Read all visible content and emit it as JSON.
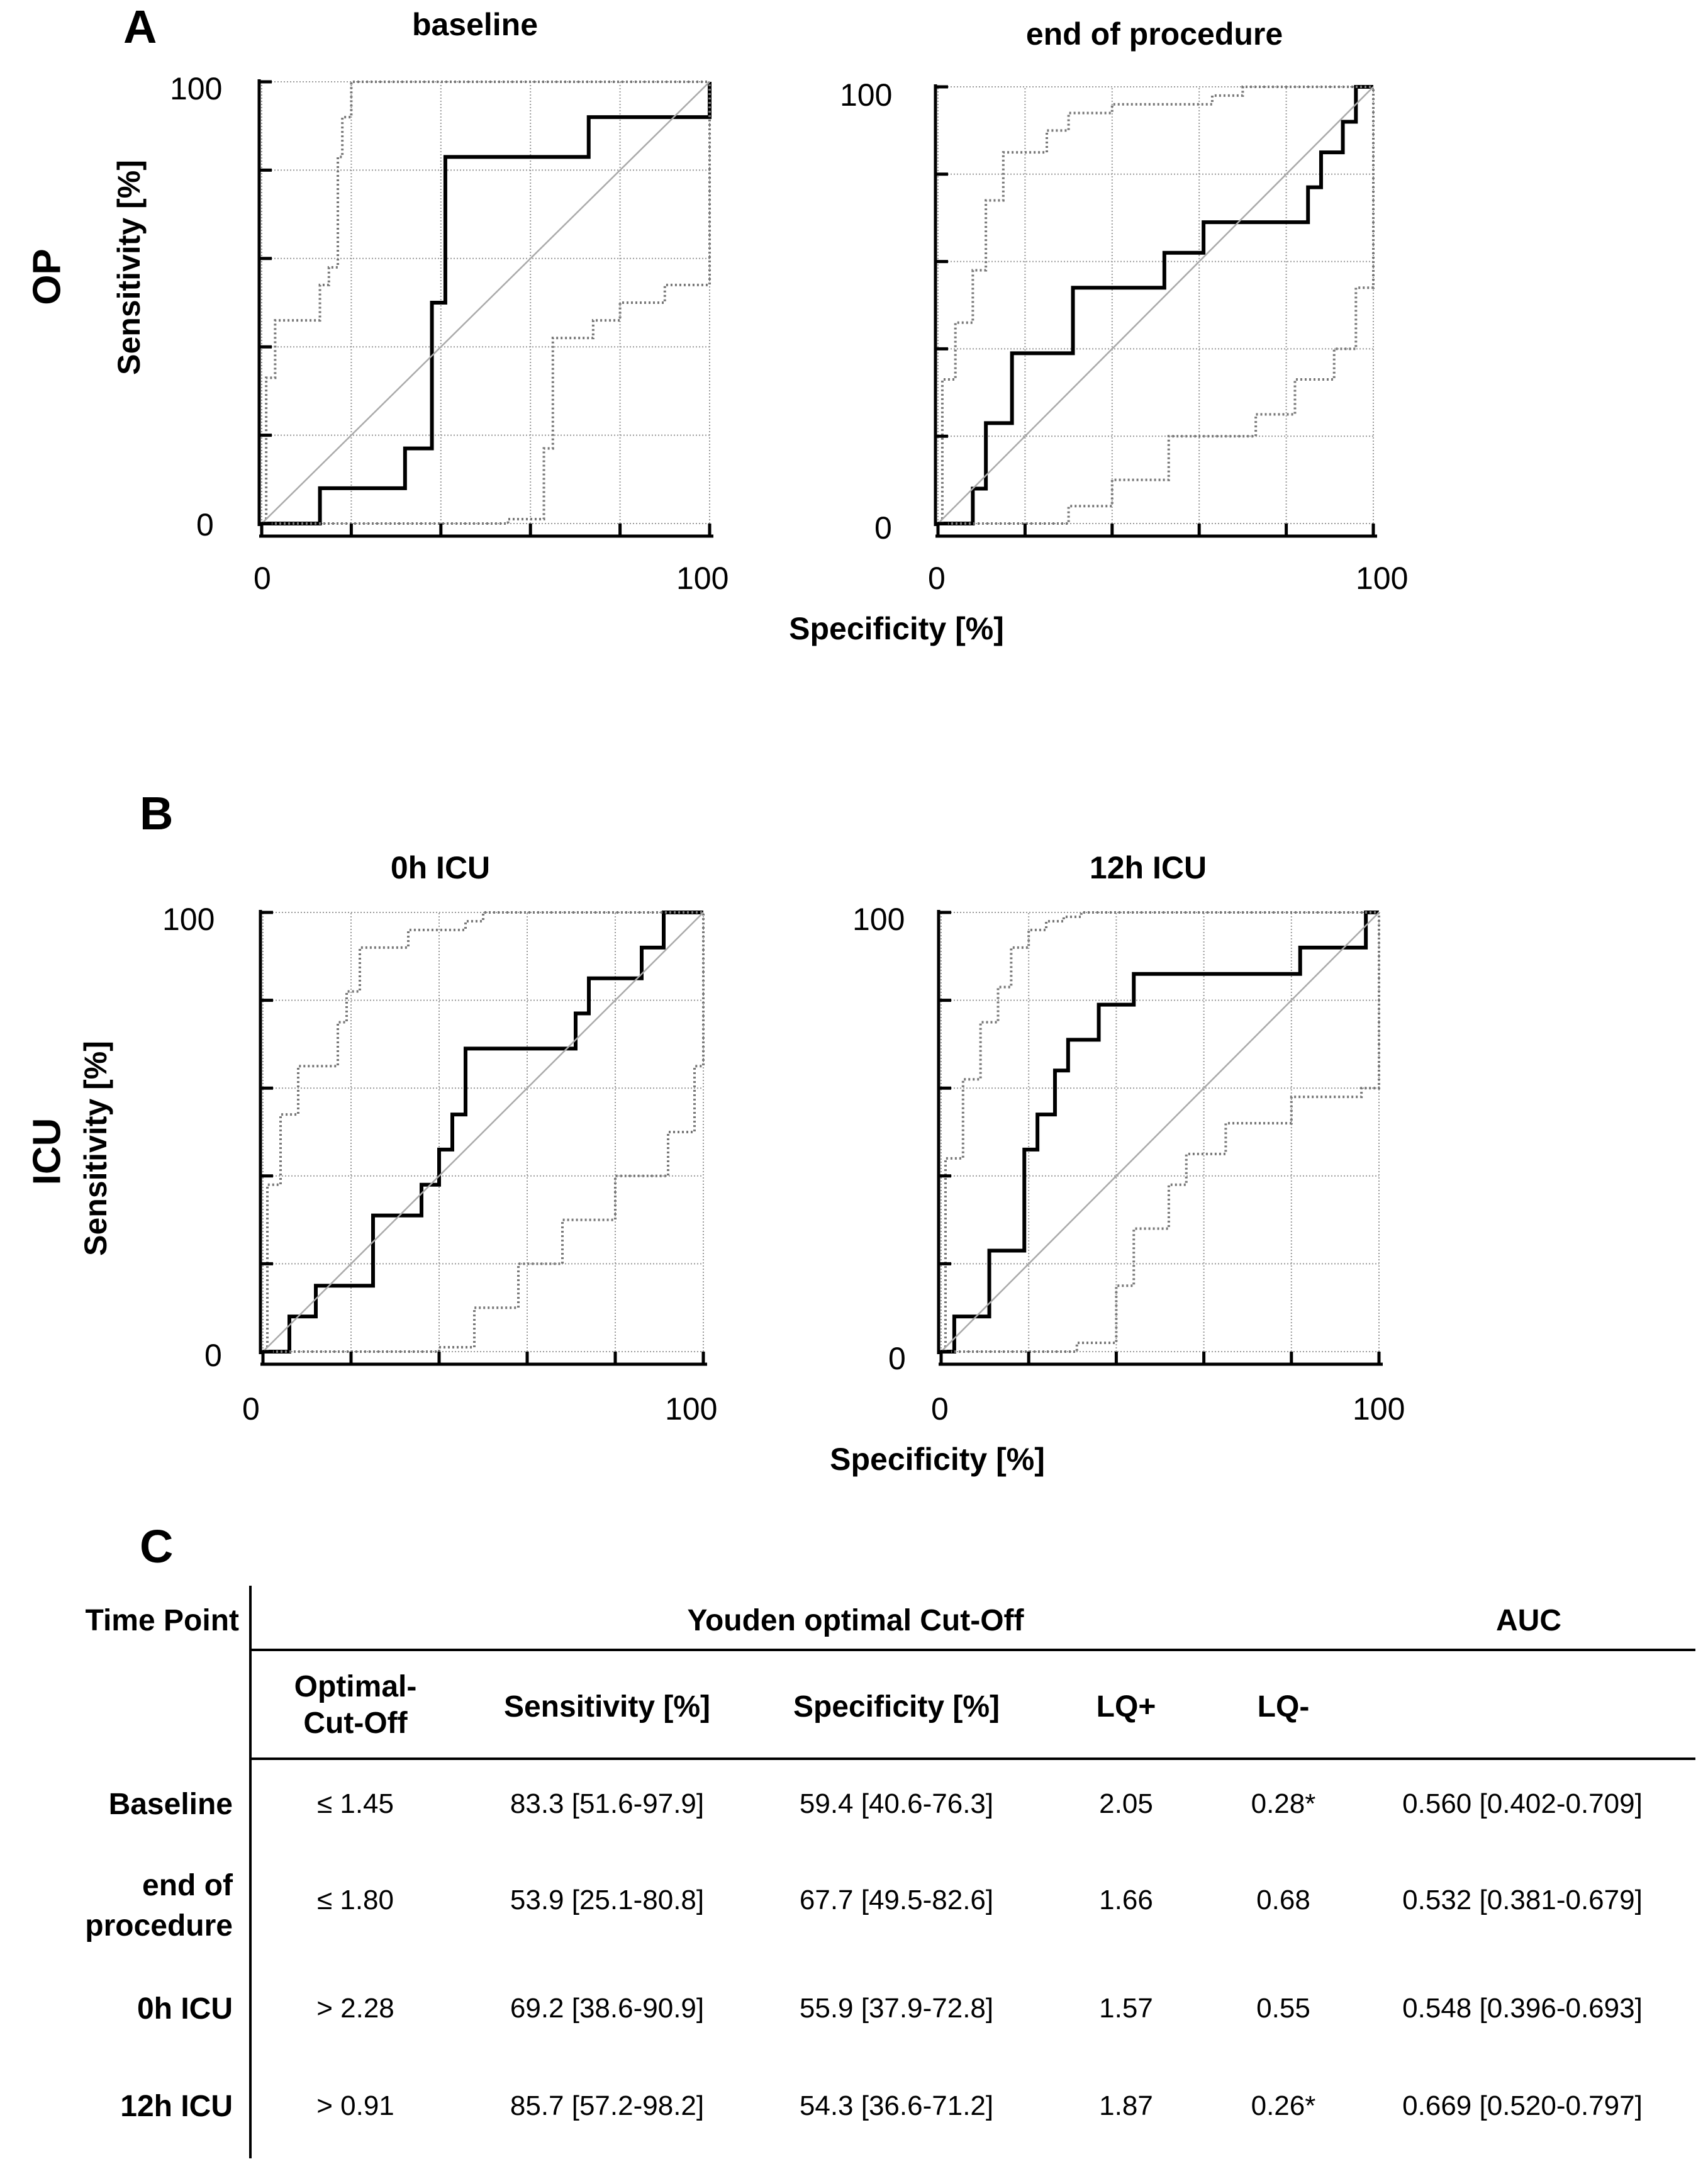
{
  "panel_labels": {
    "a": "A",
    "b": "B",
    "c": "C"
  },
  "row_labels": {
    "op": "OP",
    "icu": "ICU"
  },
  "axis": {
    "ylabel": "Sensitivity [%]",
    "xlabel": "Specificity [%]",
    "tick_low": "0",
    "tick_high": "100"
  },
  "chart_data": [
    {
      "type": "line",
      "title": "baseline",
      "xlabel": "Specificity [%]",
      "ylabel": "Sensitivity [%]",
      "xlim": [
        0,
        100
      ],
      "ylim": [
        0,
        100
      ],
      "grid": true,
      "series": [
        {
          "style": "roc",
          "x": [
            0,
            13,
            13,
            32,
            32,
            38,
            38,
            41,
            41,
            73,
            73,
            100,
            100
          ],
          "y": [
            0,
            0,
            8,
            8,
            17,
            17,
            50,
            50,
            83,
            83,
            92,
            92,
            100
          ]
        },
        {
          "style": "ci_upper",
          "x": [
            0,
            1,
            1,
            3,
            3,
            13,
            13,
            15,
            15,
            17,
            17,
            18,
            18,
            20,
            20,
            100
          ],
          "y": [
            0,
            0,
            33,
            33,
            46,
            46,
            54,
            54,
            58,
            58,
            83,
            83,
            92,
            92,
            100,
            100
          ]
        },
        {
          "style": "ci_lower",
          "x": [
            0,
            55,
            55,
            63,
            63,
            65,
            65,
            74,
            74,
            80,
            80,
            90,
            90,
            100,
            100
          ],
          "y": [
            0,
            0,
            1,
            1,
            17,
            17,
            42,
            42,
            46,
            46,
            50,
            50,
            54,
            54,
            100
          ]
        },
        {
          "style": "diagonal",
          "x": [
            0,
            100
          ],
          "y": [
            0,
            100
          ]
        }
      ]
    },
    {
      "type": "line",
      "title": "end of procedure",
      "xlabel": "Specificity [%]",
      "ylabel": "Sensitivity [%]",
      "xlim": [
        0,
        100
      ],
      "ylim": [
        0,
        100
      ],
      "grid": true,
      "series": [
        {
          "style": "roc",
          "x": [
            0,
            8,
            8,
            11,
            11,
            17,
            17,
            31,
            31,
            52,
            52,
            61,
            61,
            85,
            85,
            88,
            88,
            93,
            93,
            96,
            96,
            100,
            100
          ],
          "y": [
            0,
            0,
            8,
            8,
            23,
            23,
            39,
            39,
            54,
            54,
            62,
            62,
            69,
            69,
            77,
            77,
            85,
            85,
            92,
            92,
            100,
            100,
            100
          ]
        },
        {
          "style": "ci_upper",
          "x": [
            0,
            1,
            1,
            4,
            4,
            8,
            8,
            11,
            11,
            15,
            15,
            25,
            25,
            30,
            30,
            40,
            40,
            63,
            63,
            70,
            70,
            78,
            78,
            100
          ],
          "y": [
            0,
            0,
            33,
            33,
            46,
            46,
            58,
            58,
            74,
            74,
            85,
            85,
            90,
            90,
            94,
            94,
            96,
            96,
            98,
            98,
            100,
            100,
            100,
            100
          ]
        },
        {
          "style": "ci_lower",
          "x": [
            0,
            30,
            30,
            40,
            40,
            53,
            53,
            73,
            73,
            82,
            82,
            91,
            91,
            96,
            96,
            100,
            100
          ],
          "y": [
            0,
            0,
            4,
            4,
            10,
            10,
            20,
            20,
            25,
            25,
            33,
            33,
            40,
            40,
            54,
            54,
            100
          ]
        },
        {
          "style": "diagonal",
          "x": [
            0,
            100
          ],
          "y": [
            0,
            100
          ]
        }
      ]
    },
    {
      "type": "line",
      "title": "0h ICU",
      "xlabel": "Specificity [%]",
      "ylabel": "Sensitivity [%]",
      "xlim": [
        0,
        100
      ],
      "ylim": [
        0,
        100
      ],
      "grid": true,
      "series": [
        {
          "style": "roc",
          "x": [
            0,
            6,
            6,
            12,
            12,
            25,
            25,
            36,
            36,
            40,
            40,
            43,
            43,
            46,
            46,
            71,
            71,
            74,
            74,
            86,
            86,
            91,
            91,
            100
          ],
          "y": [
            0,
            0,
            8,
            8,
            15,
            15,
            31,
            31,
            38,
            38,
            46,
            46,
            54,
            54,
            69,
            69,
            77,
            77,
            85,
            85,
            92,
            92,
            100,
            100
          ]
        },
        {
          "style": "ci_upper",
          "x": [
            0,
            1,
            1,
            4,
            4,
            8,
            8,
            17,
            17,
            19,
            19,
            22,
            22,
            33,
            33,
            46,
            46,
            50,
            50,
            70,
            70,
            100
          ],
          "y": [
            0,
            0,
            38,
            38,
            54,
            54,
            65,
            65,
            75,
            75,
            82,
            82,
            92,
            92,
            96,
            96,
            98,
            98,
            100,
            100,
            100,
            100
          ]
        },
        {
          "style": "ci_lower",
          "x": [
            0,
            40,
            40,
            48,
            48,
            58,
            58,
            68,
            68,
            80,
            80,
            92,
            92,
            98,
            98,
            100,
            100
          ],
          "y": [
            0,
            0,
            1,
            1,
            10,
            10,
            20,
            20,
            30,
            30,
            40,
            40,
            50,
            50,
            65,
            65,
            100
          ]
        },
        {
          "style": "diagonal",
          "x": [
            0,
            100
          ],
          "y": [
            0,
            100
          ]
        }
      ]
    },
    {
      "type": "line",
      "title": "12h ICU",
      "xlabel": "Specificity [%]",
      "ylabel": "Sensitivity [%]",
      "xlim": [
        0,
        100
      ],
      "ylim": [
        0,
        100
      ],
      "grid": true,
      "series": [
        {
          "style": "roc",
          "x": [
            0,
            3,
            3,
            11,
            11,
            19,
            19,
            22,
            22,
            26,
            26,
            29,
            29,
            36,
            36,
            44,
            44,
            82,
            82,
            97,
            97,
            100
          ],
          "y": [
            0,
            0,
            8,
            8,
            23,
            23,
            46,
            46,
            54,
            54,
            64,
            64,
            71,
            71,
            79,
            79,
            86,
            86,
            92,
            92,
            100,
            100
          ]
        },
        {
          "style": "ci_upper",
          "x": [
            0,
            1,
            1,
            5,
            5,
            9,
            9,
            13,
            13,
            16,
            16,
            20,
            20,
            24,
            24,
            28,
            28,
            32,
            32,
            100
          ],
          "y": [
            0,
            0,
            44,
            44,
            62,
            62,
            75,
            75,
            83,
            83,
            92,
            92,
            96,
            96,
            98,
            98,
            99,
            99,
            100,
            100
          ]
        },
        {
          "style": "ci_lower",
          "x": [
            0,
            31,
            31,
            40,
            40,
            44,
            44,
            52,
            52,
            56,
            56,
            65,
            65,
            80,
            80,
            96,
            96,
            100,
            100
          ],
          "y": [
            0,
            0,
            2,
            2,
            15,
            15,
            28,
            28,
            38,
            38,
            45,
            45,
            52,
            52,
            58,
            58,
            60,
            60,
            100
          ]
        },
        {
          "style": "diagonal",
          "x": [
            0,
            100
          ],
          "y": [
            0,
            100
          ]
        }
      ]
    }
  ],
  "table": {
    "time_point_header": "Time Point",
    "youden_header": "Youden optimal Cut-Off",
    "auc_header": "AUC",
    "subheaders": {
      "cutoff": "Optimal-Cut-Off",
      "sensitivity": "Sensitivity [%]",
      "specificity": "Specificity [%]",
      "lq_pos": "LQ+",
      "lq_neg": "LQ-"
    },
    "rows": [
      {
        "label": "Baseline",
        "cutoff": "≤ 1.45",
        "sensitivity": "83.3 [51.6-97.9]",
        "specificity": "59.4 [40.6-76.3]",
        "lq_pos": "2.05",
        "lq_neg": "0.28*",
        "auc": "0.560 [0.402-0.709]"
      },
      {
        "label": "end of procedure",
        "cutoff": "≤ 1.80",
        "sensitivity": "53.9 [25.1-80.8]",
        "specificity": "67.7 [49.5-82.6]",
        "lq_pos": "1.66",
        "lq_neg": "0.68",
        "auc": "0.532 [0.381-0.679]"
      },
      {
        "label": "0h ICU",
        "cutoff": "> 2.28",
        "sensitivity": "69.2 [38.6-90.9]",
        "specificity": "55.9 [37.9-72.8]",
        "lq_pos": "1.57",
        "lq_neg": "0.55",
        "auc": "0.548 [0.396-0.693]"
      },
      {
        "label": "12h ICU",
        "cutoff": "> 0.91",
        "sensitivity": "85.7 [57.2-98.2]",
        "specificity": "54.3 [36.6-71.2]",
        "lq_pos": "1.87",
        "lq_neg": "0.26*",
        "auc": "0.669 [0.520-0.797]"
      }
    ]
  }
}
